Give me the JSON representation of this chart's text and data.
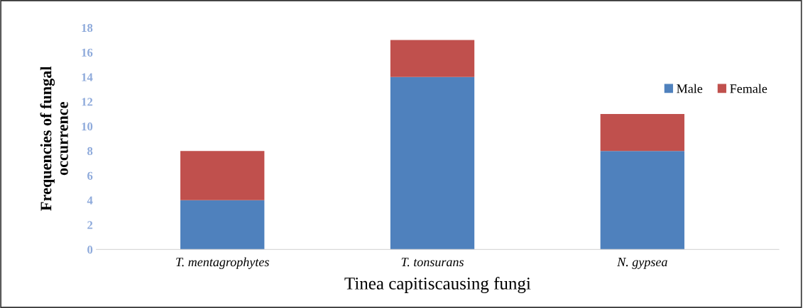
{
  "chart_data": {
    "type": "bar",
    "stacked": true,
    "xlabel": "Tinea capitiscausing fungi",
    "ylabel": "Frequencies of fungal\noccurrence",
    "categories": [
      "T. mentagrophytes",
      "T. tonsurans",
      "N. gypsea"
    ],
    "series": [
      {
        "name": "Male",
        "color": "#4f81bd",
        "values": [
          4,
          14,
          8
        ]
      },
      {
        "name": "Female",
        "color": "#c0504d",
        "values": [
          4,
          3,
          3
        ]
      }
    ],
    "ylim": [
      0,
      18
    ],
    "yticks": [
      0,
      2,
      4,
      6,
      8,
      10,
      12,
      14,
      16,
      18
    ],
    "grid": false,
    "legend": "right"
  }
}
